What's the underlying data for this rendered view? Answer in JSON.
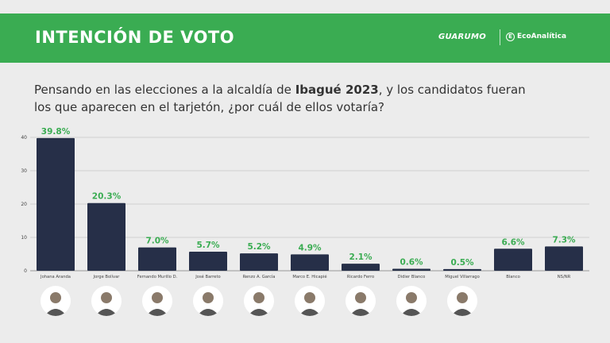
{
  "header": {
    "title": "INTENCIÓN DE VOTO",
    "brand_primary": "GUARUMO",
    "brand_secondary": "EcoAnalítica"
  },
  "question": {
    "part1": "Pensando en las elecciones a la alcaldía de ",
    "highlight": "Ibagué 2023",
    "part2": ", y los candidatos fueran los que aparecen en el tarjetón, ¿por cuál de ellos votaría?"
  },
  "colors": {
    "header_bg": "#3aac52",
    "bar": "#262f48",
    "value_label": "#3aac52"
  },
  "chart_data": {
    "type": "bar",
    "categories": [
      "Johana Aranda",
      "Jorge Bolívar",
      "Fernando Murillo D.",
      "José Barreto",
      "Renzo A. García",
      "Marco E. Hicapié",
      "Ricardo Ferro",
      "Didier Blanco",
      "Miguel Villarrago",
      "Blanco",
      "NS/NR"
    ],
    "values": [
      39.8,
      20.3,
      7.0,
      5.7,
      5.2,
      4.9,
      2.1,
      0.6,
      0.5,
      6.6,
      7.3
    ],
    "value_labels": [
      "39.8%",
      "20.3%",
      "7.0%",
      "5.7%",
      "5.2%",
      "4.9%",
      "2.1%",
      "0.6%",
      "0.5%",
      "6.6%",
      "7.3%"
    ],
    "yticks": [
      0,
      10,
      20,
      30,
      40
    ],
    "ylim": [
      0,
      40
    ],
    "grid": true
  },
  "photos": [
    "candidate",
    "candidate",
    "candidate",
    "candidate",
    "candidate",
    "candidate",
    "candidate",
    "candidate",
    "candidate"
  ]
}
